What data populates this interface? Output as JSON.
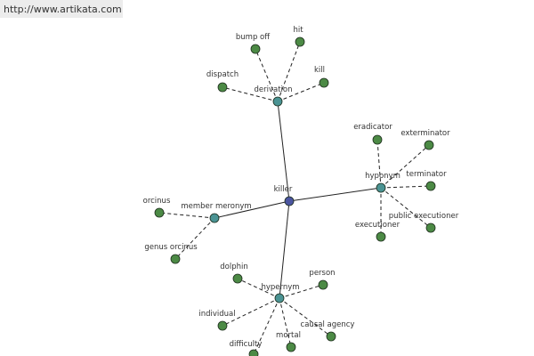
{
  "header": {
    "url": "http://www.artikata.com"
  },
  "nodes": [
    {
      "label": "killer"
    },
    {
      "label": "derivation"
    },
    {
      "label": "bump off"
    },
    {
      "label": "hit"
    },
    {
      "label": "kill"
    },
    {
      "label": "dispatch"
    },
    {
      "label": "hyponym"
    },
    {
      "label": "eradicator"
    },
    {
      "label": "exterminator"
    },
    {
      "label": "terminator"
    },
    {
      "label": "public executioner"
    },
    {
      "label": "executioner"
    },
    {
      "label": "member meronym"
    },
    {
      "label": "orcinus"
    },
    {
      "label": "genus orcinus"
    },
    {
      "label": "hypernym"
    },
    {
      "label": "dolphin"
    },
    {
      "label": "person"
    },
    {
      "label": "individual"
    },
    {
      "label": "difficulty"
    },
    {
      "label": "mortal"
    },
    {
      "label": "causal agency"
    }
  ]
}
